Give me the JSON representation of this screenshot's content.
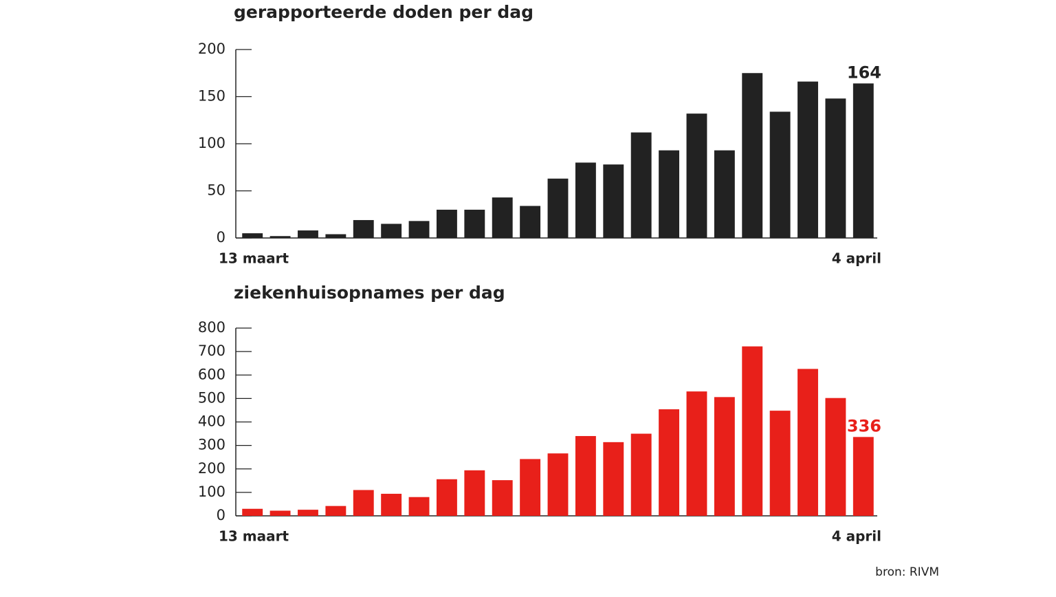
{
  "chart_data": [
    {
      "type": "bar",
      "title": "gerapporteerde doden per dag",
      "categories": [
        "13 maart",
        null,
        null,
        null,
        null,
        null,
        null,
        null,
        null,
        null,
        null,
        null,
        null,
        null,
        null,
        null,
        null,
        null,
        null,
        null,
        null,
        null,
        "4 april"
      ],
      "values": [
        5,
        2,
        8,
        4,
        19,
        15,
        18,
        30,
        30,
        43,
        34,
        63,
        80,
        78,
        112,
        93,
        132,
        93,
        175,
        134,
        166,
        148,
        164
      ],
      "color": "#222222",
      "ylim": [
        0,
        200
      ],
      "yticks": [
        0,
        50,
        100,
        150,
        200
      ]
    },
    {
      "type": "bar",
      "title": "ziekenhuisopnames per dag",
      "categories": [
        "13 maart",
        null,
        null,
        null,
        null,
        null,
        null,
        null,
        null,
        null,
        null,
        null,
        null,
        null,
        null,
        null,
        null,
        null,
        null,
        null,
        null,
        null,
        "4 april"
      ],
      "values": [
        30,
        22,
        26,
        42,
        110,
        94,
        80,
        156,
        194,
        152,
        242,
        266,
        340,
        314,
        350,
        454,
        530,
        506,
        722,
        448,
        626,
        502,
        336
      ],
      "color": "#e8201a",
      "ylim": [
        0,
        800
      ],
      "yticks": [
        0,
        100,
        200,
        300,
        400,
        500,
        600,
        700,
        800
      ]
    }
  ],
  "source": "bron: RIVM"
}
